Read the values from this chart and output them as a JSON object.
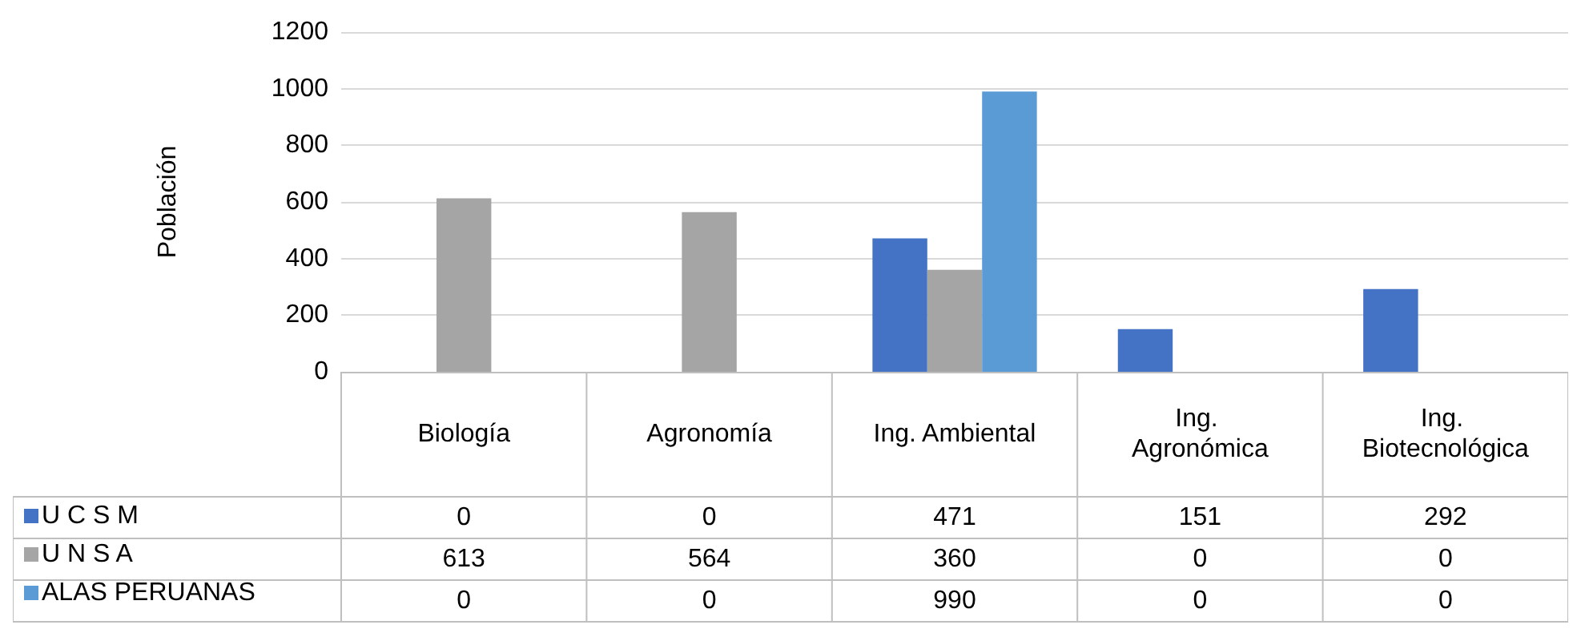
{
  "chart_data": {
    "type": "bar",
    "ylabel": "Población",
    "categories": [
      "Biología",
      "Agronomía",
      "Ing. Ambiental",
      "Ing. Agronómica",
      "Ing. Biotecnológica"
    ],
    "series": [
      {
        "name": "U C S M",
        "color": "#4472c4",
        "values": [
          0,
          0,
          471,
          151,
          292
        ]
      },
      {
        "name": "U N S A",
        "color": "#a5a5a5",
        "values": [
          613,
          564,
          360,
          0,
          0
        ]
      },
      {
        "name": "ALAS PERUANAS",
        "color": "#5b9bd5",
        "values": [
          0,
          0,
          990,
          0,
          0
        ]
      }
    ],
    "ylim": [
      0,
      1200
    ],
    "yticks": [
      0,
      200,
      400,
      600,
      800,
      1000,
      1200
    ],
    "grid": "y",
    "legend": "bottom",
    "data_labels": true
  }
}
